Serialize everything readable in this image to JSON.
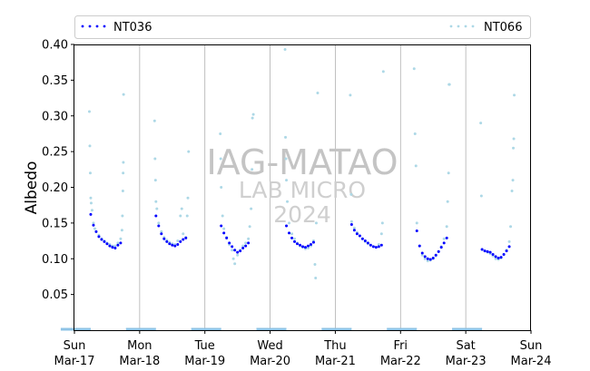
{
  "chart_data": {
    "type": "scatter",
    "title": "",
    "xlabel": "",
    "ylabel": "Albedo",
    "ylim": [
      0.0,
      0.4
    ],
    "yticks": [
      0.05,
      0.1,
      0.15,
      0.2,
      0.25,
      0.3,
      0.35,
      0.4
    ],
    "ytick_labels": [
      "0.05",
      "0.10",
      "0.15",
      "0.20",
      "0.25",
      "0.30",
      "0.35",
      "0.40"
    ],
    "xlim": [
      "2024-03-17",
      "2024-03-24"
    ],
    "xticks": [
      {
        "day": "Sun",
        "date": "Mar-17"
      },
      {
        "day": "Mon",
        "date": "Mar-18"
      },
      {
        "day": "Tue",
        "date": "Mar-19"
      },
      {
        "day": "Wed",
        "date": "Mar-20"
      },
      {
        "day": "Thu",
        "date": "Mar-21"
      },
      {
        "day": "Fri",
        "date": "Mar-22"
      },
      {
        "day": "Sat",
        "date": "Mar-23"
      },
      {
        "day": "Sun",
        "date": "Mar-24"
      }
    ],
    "grid": "vertical at day boundaries",
    "legend": "top, spanning the plot",
    "watermark": {
      "line1": "IAG-MATAO",
      "line2": "LAB MICRO",
      "line3": "2024"
    },
    "series": [
      {
        "name": "NT036",
        "color": "#0000ff",
        "points": [
          [
            "2024-03-17T06:00",
            0.162
          ],
          [
            "2024-03-17T07:00",
            0.147
          ],
          [
            "2024-03-17T08:00",
            0.138
          ],
          [
            "2024-03-17T09:00",
            0.131
          ],
          [
            "2024-03-17T10:00",
            0.127
          ],
          [
            "2024-03-17T11:00",
            0.124
          ],
          [
            "2024-03-17T12:00",
            0.121
          ],
          [
            "2024-03-17T13:00",
            0.118
          ],
          [
            "2024-03-17T14:00",
            0.116
          ],
          [
            "2024-03-17T15:00",
            0.115
          ],
          [
            "2024-03-17T16:00",
            0.119
          ],
          [
            "2024-03-17T17:00",
            0.122
          ],
          [
            "2024-03-18T06:00",
            0.16
          ],
          [
            "2024-03-18T07:00",
            0.146
          ],
          [
            "2024-03-18T08:00",
            0.135
          ],
          [
            "2024-03-18T09:00",
            0.128
          ],
          [
            "2024-03-18T10:00",
            0.124
          ],
          [
            "2024-03-18T11:00",
            0.121
          ],
          [
            "2024-03-18T12:00",
            0.119
          ],
          [
            "2024-03-18T13:00",
            0.118
          ],
          [
            "2024-03-18T14:00",
            0.12
          ],
          [
            "2024-03-18T15:00",
            0.124
          ],
          [
            "2024-03-18T16:00",
            0.127
          ],
          [
            "2024-03-18T17:00",
            0.129
          ],
          [
            "2024-03-19T06:00",
            0.146
          ],
          [
            "2024-03-19T07:00",
            0.136
          ],
          [
            "2024-03-19T08:00",
            0.129
          ],
          [
            "2024-03-19T09:00",
            0.122
          ],
          [
            "2024-03-19T10:00",
            0.117
          ],
          [
            "2024-03-19T11:00",
            0.112
          ],
          [
            "2024-03-19T12:00",
            0.109
          ],
          [
            "2024-03-19T13:00",
            0.111
          ],
          [
            "2024-03-19T14:00",
            0.115
          ],
          [
            "2024-03-19T15:00",
            0.118
          ],
          [
            "2024-03-19T16:00",
            0.122
          ],
          [
            "2024-03-20T06:00",
            0.146
          ],
          [
            "2024-03-20T07:00",
            0.136
          ],
          [
            "2024-03-20T08:00",
            0.129
          ],
          [
            "2024-03-20T09:00",
            0.124
          ],
          [
            "2024-03-20T10:00",
            0.121
          ],
          [
            "2024-03-20T11:00",
            0.119
          ],
          [
            "2024-03-20T12:00",
            0.117
          ],
          [
            "2024-03-20T13:00",
            0.116
          ],
          [
            "2024-03-20T14:00",
            0.118
          ],
          [
            "2024-03-20T15:00",
            0.12
          ],
          [
            "2024-03-20T16:00",
            0.123
          ],
          [
            "2024-03-21T06:00",
            0.148
          ],
          [
            "2024-03-21T07:00",
            0.14
          ],
          [
            "2024-03-21T08:00",
            0.135
          ],
          [
            "2024-03-21T09:00",
            0.132
          ],
          [
            "2024-03-21T10:00",
            0.128
          ],
          [
            "2024-03-21T11:00",
            0.125
          ],
          [
            "2024-03-21T12:00",
            0.122
          ],
          [
            "2024-03-21T13:00",
            0.119
          ],
          [
            "2024-03-21T14:00",
            0.117
          ],
          [
            "2024-03-21T15:00",
            0.116
          ],
          [
            "2024-03-21T16:00",
            0.117
          ],
          [
            "2024-03-21T17:00",
            0.119
          ],
          [
            "2024-03-22T06:00",
            0.139
          ],
          [
            "2024-03-22T07:00",
            0.118
          ],
          [
            "2024-03-22T08:00",
            0.108
          ],
          [
            "2024-03-22T09:00",
            0.103
          ],
          [
            "2024-03-22T10:00",
            0.1
          ],
          [
            "2024-03-22T11:00",
            0.099
          ],
          [
            "2024-03-22T12:00",
            0.101
          ],
          [
            "2024-03-22T13:00",
            0.105
          ],
          [
            "2024-03-22T14:00",
            0.11
          ],
          [
            "2024-03-22T15:00",
            0.116
          ],
          [
            "2024-03-22T16:00",
            0.122
          ],
          [
            "2024-03-22T17:00",
            0.129
          ],
          [
            "2024-03-23T06:00",
            0.113
          ],
          [
            "2024-03-23T07:00",
            0.111
          ],
          [
            "2024-03-23T08:00",
            0.11
          ],
          [
            "2024-03-23T09:00",
            0.109
          ],
          [
            "2024-03-23T10:00",
            0.106
          ],
          [
            "2024-03-23T11:00",
            0.103
          ],
          [
            "2024-03-23T12:00",
            0.101
          ],
          [
            "2024-03-23T13:00",
            0.102
          ],
          [
            "2024-03-23T14:00",
            0.106
          ],
          [
            "2024-03-23T15:00",
            0.111
          ],
          [
            "2024-03-23T16:00",
            0.117
          ]
        ]
      },
      {
        "name": "NT066",
        "color": "#add8e6",
        "points": [
          [
            "2024-03-17T05:30",
            0.306
          ],
          [
            "2024-03-17T05:40",
            0.258
          ],
          [
            "2024-03-17T05:50",
            0.22
          ],
          [
            "2024-03-17T06:00",
            0.185
          ],
          [
            "2024-03-17T06:10",
            0.178
          ],
          [
            "2024-03-17T06:30",
            0.168
          ],
          [
            "2024-03-17T07:00",
            0.15
          ],
          [
            "2024-03-17T07:30",
            0.142
          ],
          [
            "2024-03-17T08:00",
            0.138
          ],
          [
            "2024-03-17T09:00",
            0.133
          ],
          [
            "2024-03-17T10:00",
            0.128
          ],
          [
            "2024-03-17T11:00",
            0.125
          ],
          [
            "2024-03-17T12:00",
            0.122
          ],
          [
            "2024-03-17T13:00",
            0.12
          ],
          [
            "2024-03-17T14:00",
            0.118
          ],
          [
            "2024-03-17T15:00",
            0.118
          ],
          [
            "2024-03-17T16:00",
            0.122
          ],
          [
            "2024-03-17T17:00",
            0.128
          ],
          [
            "2024-03-17T17:30",
            0.14
          ],
          [
            "2024-03-17T17:40",
            0.16
          ],
          [
            "2024-03-17T17:50",
            0.195
          ],
          [
            "2024-03-17T17:55",
            0.22
          ],
          [
            "2024-03-17T18:00",
            0.235
          ],
          [
            "2024-03-17T18:05",
            0.33
          ],
          [
            "2024-03-18T05:30",
            0.293
          ],
          [
            "2024-03-18T05:40",
            0.24
          ],
          [
            "2024-03-18T05:50",
            0.21
          ],
          [
            "2024-03-18T06:00",
            0.18
          ],
          [
            "2024-03-18T06:20",
            0.17
          ],
          [
            "2024-03-18T07:00",
            0.15
          ],
          [
            "2024-03-18T08:00",
            0.138
          ],
          [
            "2024-03-18T09:00",
            0.13
          ],
          [
            "2024-03-18T10:00",
            0.126
          ],
          [
            "2024-03-18T11:00",
            0.123
          ],
          [
            "2024-03-18T12:00",
            0.121
          ],
          [
            "2024-03-18T13:00",
            0.12
          ],
          [
            "2024-03-18T14:00",
            0.125
          ],
          [
            "2024-03-18T15:00",
            0.16
          ],
          [
            "2024-03-18T15:30",
            0.17
          ],
          [
            "2024-03-18T16:00",
            0.135
          ],
          [
            "2024-03-18T17:00",
            0.13
          ],
          [
            "2024-03-18T17:30",
            0.16
          ],
          [
            "2024-03-18T17:45",
            0.185
          ],
          [
            "2024-03-18T18:00",
            0.25
          ],
          [
            "2024-03-19T05:40",
            0.275
          ],
          [
            "2024-03-19T05:50",
            0.24
          ],
          [
            "2024-03-19T06:00",
            0.2
          ],
          [
            "2024-03-19T06:30",
            0.16
          ],
          [
            "2024-03-19T07:00",
            0.142
          ],
          [
            "2024-03-19T08:00",
            0.13
          ],
          [
            "2024-03-19T09:00",
            0.12
          ],
          [
            "2024-03-19T10:00",
            0.112
          ],
          [
            "2024-03-19T10:30",
            0.1
          ],
          [
            "2024-03-19T11:00",
            0.093
          ],
          [
            "2024-03-19T12:00",
            0.105
          ],
          [
            "2024-03-19T13:00",
            0.112
          ],
          [
            "2024-03-19T14:00",
            0.118
          ],
          [
            "2024-03-19T15:00",
            0.122
          ],
          [
            "2024-03-19T16:00",
            0.128
          ],
          [
            "2024-03-19T16:30",
            0.145
          ],
          [
            "2024-03-19T17:00",
            0.17
          ],
          [
            "2024-03-19T17:20",
            0.225
          ],
          [
            "2024-03-19T17:30",
            0.297
          ],
          [
            "2024-03-19T17:50",
            0.302
          ],
          [
            "2024-03-20T05:30",
            0.393
          ],
          [
            "2024-03-20T05:40",
            0.27
          ],
          [
            "2024-03-20T05:50",
            0.24
          ],
          [
            "2024-03-20T06:00",
            0.21
          ],
          [
            "2024-03-20T06:20",
            0.18
          ],
          [
            "2024-03-20T07:00",
            0.15
          ],
          [
            "2024-03-20T08:00",
            0.135
          ],
          [
            "2024-03-20T09:00",
            0.128
          ],
          [
            "2024-03-20T10:00",
            0.122
          ],
          [
            "2024-03-20T11:00",
            0.118
          ],
          [
            "2024-03-20T12:00",
            0.116
          ],
          [
            "2024-03-20T13:00",
            0.114
          ],
          [
            "2024-03-20T14:00",
            0.115
          ],
          [
            "2024-03-20T15:00",
            0.118
          ],
          [
            "2024-03-20T16:00",
            0.125
          ],
          [
            "2024-03-20T16:30",
            0.092
          ],
          [
            "2024-03-20T16:45",
            0.073
          ],
          [
            "2024-03-20T17:00",
            0.15
          ],
          [
            "2024-03-20T17:30",
            0.332
          ],
          [
            "2024-03-21T05:30",
            0.329
          ],
          [
            "2024-03-21T05:50",
            0.19
          ],
          [
            "2024-03-21T06:00",
            0.152
          ],
          [
            "2024-03-21T07:00",
            0.143
          ],
          [
            "2024-03-21T08:00",
            0.137
          ],
          [
            "2024-03-21T09:00",
            0.132
          ],
          [
            "2024-03-21T10:00",
            0.128
          ],
          [
            "2024-03-21T11:00",
            0.124
          ],
          [
            "2024-03-21T12:00",
            0.121
          ],
          [
            "2024-03-21T13:00",
            0.119
          ],
          [
            "2024-03-21T14:00",
            0.117
          ],
          [
            "2024-03-21T15:00",
            0.116
          ],
          [
            "2024-03-21T16:00",
            0.12
          ],
          [
            "2024-03-21T17:00",
            0.135
          ],
          [
            "2024-03-21T17:20",
            0.15
          ],
          [
            "2024-03-21T17:40",
            0.362
          ],
          [
            "2024-03-22T05:00",
            0.366
          ],
          [
            "2024-03-22T05:20",
            0.275
          ],
          [
            "2024-03-22T05:40",
            0.23
          ],
          [
            "2024-03-22T06:00",
            0.15
          ],
          [
            "2024-03-22T07:00",
            0.118
          ],
          [
            "2024-03-22T08:00",
            0.105
          ],
          [
            "2024-03-22T09:00",
            0.1
          ],
          [
            "2024-03-22T10:00",
            0.097
          ],
          [
            "2024-03-22T11:00",
            0.098
          ],
          [
            "2024-03-22T12:00",
            0.1
          ],
          [
            "2024-03-22T13:00",
            0.104
          ],
          [
            "2024-03-22T14:00",
            0.11
          ],
          [
            "2024-03-22T15:00",
            0.117
          ],
          [
            "2024-03-22T16:00",
            0.128
          ],
          [
            "2024-03-22T17:00",
            0.145
          ],
          [
            "2024-03-22T17:20",
            0.18
          ],
          [
            "2024-03-22T17:40",
            0.22
          ],
          [
            "2024-03-22T17:50",
            0.344
          ],
          [
            "2024-03-22T18:00",
            0.344
          ],
          [
            "2024-03-23T05:30",
            0.29
          ],
          [
            "2024-03-23T05:45",
            0.188
          ],
          [
            "2024-03-23T06:00",
            0.113
          ],
          [
            "2024-03-23T07:00",
            0.111
          ],
          [
            "2024-03-23T08:00",
            0.109
          ],
          [
            "2024-03-23T09:00",
            0.107
          ],
          [
            "2024-03-23T10:00",
            0.104
          ],
          [
            "2024-03-23T11:00",
            0.1
          ],
          [
            "2024-03-23T12:00",
            0.099
          ],
          [
            "2024-03-23T13:00",
            0.101
          ],
          [
            "2024-03-23T14:00",
            0.106
          ],
          [
            "2024-03-23T15:00",
            0.112
          ],
          [
            "2024-03-23T16:00",
            0.124
          ],
          [
            "2024-03-23T16:30",
            0.145
          ],
          [
            "2024-03-23T17:00",
            0.195
          ],
          [
            "2024-03-23T17:20",
            0.21
          ],
          [
            "2024-03-23T17:30",
            0.255
          ],
          [
            "2024-03-23T17:40",
            0.268
          ],
          [
            "2024-03-23T17:50",
            0.329
          ]
        ]
      }
    ]
  }
}
